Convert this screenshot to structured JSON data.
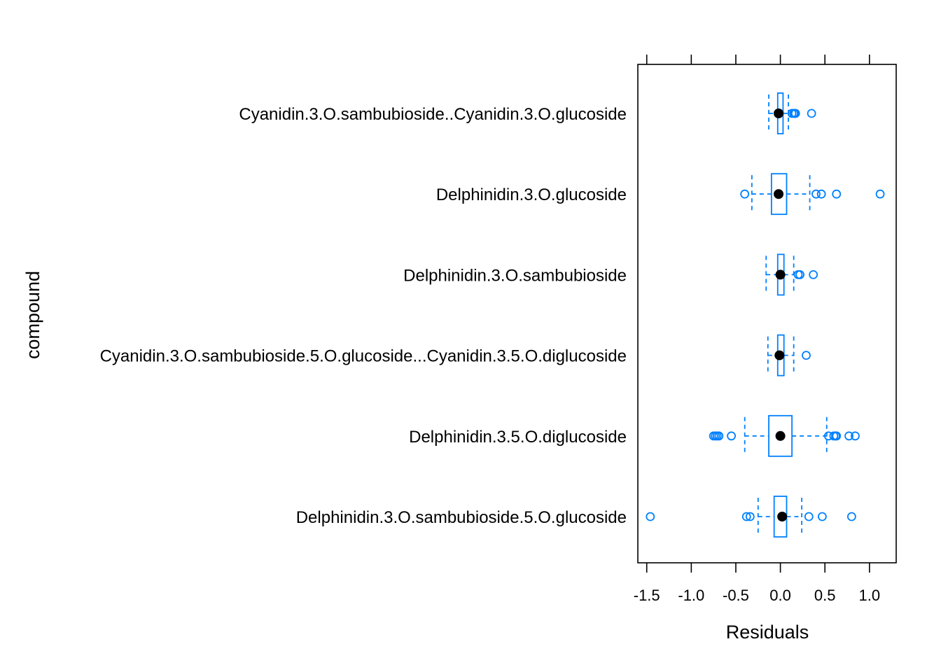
{
  "chart_data": {
    "type": "box",
    "xlabel": "Residuals",
    "ylabel": "compound",
    "xlim": [
      -1.6,
      1.3
    ],
    "xticks": [
      -1.5,
      -1.0,
      -0.5,
      0.0,
      0.5,
      1.0
    ],
    "xtick_labels": [
      "-1.5",
      "-1.0",
      "-0.5",
      "0.0",
      "0.5",
      "1.0"
    ],
    "grid": false,
    "colors": {
      "box": "#0080ff",
      "median": "#000000"
    },
    "categories": [
      {
        "name": "Cyanidin.3.O.sambubioside..Cyanidin.3.O.glucoside",
        "whisker_low": -0.13,
        "q1": -0.03,
        "median": -0.02,
        "q3": 0.03,
        "whisker_high": 0.09,
        "outliers": [
          0.13,
          0.15,
          0.16,
          0.17,
          0.35
        ]
      },
      {
        "name": "Delphinidin.3.O.glucoside",
        "whisker_low": -0.32,
        "q1": -0.1,
        "median": -0.02,
        "q3": 0.07,
        "whisker_high": 0.33,
        "outliers": [
          -0.4,
          0.4,
          0.46,
          0.63,
          1.12
        ]
      },
      {
        "name": "Delphinidin.3.O.sambubioside",
        "whisker_low": -0.16,
        "q1": -0.03,
        "median": 0.0,
        "q3": 0.04,
        "whisker_high": 0.15,
        "outliers": [
          0.2,
          0.22,
          0.37
        ]
      },
      {
        "name": "Cyanidin.3.O.sambubioside.5.O.glucoside...Cyanidin.3.5.O.diglucoside",
        "whisker_low": -0.14,
        "q1": -0.03,
        "median": -0.01,
        "q3": 0.04,
        "whisker_high": 0.15,
        "outliers": [
          0.29
        ]
      },
      {
        "name": "Delphinidin.3.5.O.diglucoside",
        "whisker_low": -0.4,
        "q1": -0.13,
        "median": 0.0,
        "q3": 0.13,
        "whisker_high": 0.52,
        "outliers": [
          -0.75,
          -0.73,
          -0.71,
          -0.69,
          -0.55,
          0.54,
          0.6,
          0.62,
          0.63,
          0.77,
          0.84
        ]
      },
      {
        "name": "Delphinidin.3.O.sambubioside.5.O.glucoside",
        "whisker_low": -0.25,
        "q1": -0.07,
        "median": 0.02,
        "q3": 0.07,
        "whisker_high": 0.24,
        "outliers": [
          -1.46,
          -0.38,
          -0.34,
          0.32,
          0.47,
          0.8
        ]
      }
    ]
  }
}
